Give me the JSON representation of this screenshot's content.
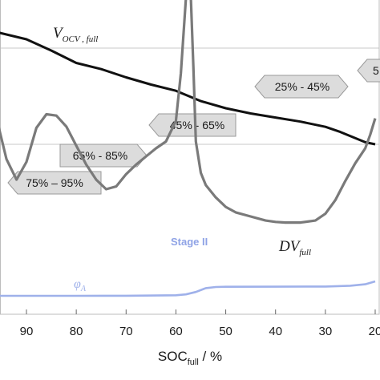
{
  "chart_data": {
    "type": "line",
    "xlabel_main": "SOC",
    "xlabel_sub": "full",
    "xlabel_unit": " / %",
    "x_reversed": true,
    "xlim": [
      96,
      20
    ],
    "x_ticks": [
      90,
      80,
      70,
      60,
      50,
      40,
      30,
      20
    ],
    "x_tick_labels": [
      "90",
      "80",
      "70",
      "60",
      "50",
      "40",
      "30",
      "20"
    ],
    "colors": {
      "vocv": "#111111",
      "dv": "#7a7a7a",
      "phi": "#9fb1ea",
      "stage": "#8fa3e6",
      "arrow_fill": "#dcdcdc",
      "arrow_stroke": "#9a9a9a"
    },
    "series": [
      {
        "key": "vocv",
        "x": [
          96,
          90,
          85,
          80,
          75,
          70,
          65,
          60,
          55,
          50,
          45,
          40,
          35,
          30,
          27,
          24,
          22,
          20
        ],
        "y": [
          3.52,
          3.485,
          3.43,
          3.37,
          3.34,
          3.3,
          3.265,
          3.235,
          3.185,
          3.15,
          3.125,
          3.105,
          3.085,
          3.06,
          3.035,
          3.005,
          2.985,
          2.975
        ]
      },
      {
        "key": "dv",
        "x": [
          96,
          94,
          92,
          90,
          88,
          86,
          84,
          82,
          80,
          78,
          76,
          74,
          72,
          70,
          68,
          66,
          64,
          62,
          60,
          59,
          58,
          57.5,
          57,
          56.5,
          56,
          55,
          54,
          52,
          50,
          48,
          45,
          42,
          40,
          38,
          35,
          32,
          30,
          28,
          26,
          24,
          22,
          21,
          20
        ],
        "y": [
          0.72,
          0.42,
          0.27,
          0.4,
          0.65,
          0.75,
          0.74,
          0.66,
          0.52,
          0.38,
          0.27,
          0.2,
          0.22,
          0.31,
          0.38,
          0.44,
          0.5,
          0.55,
          0.7,
          1.05,
          1.6,
          1.72,
          1.6,
          1.1,
          0.55,
          0.32,
          0.23,
          0.14,
          0.07,
          0.03,
          0.0,
          -0.03,
          -0.04,
          -0.045,
          -0.045,
          -0.03,
          0.02,
          0.12,
          0.26,
          0.39,
          0.5,
          0.6,
          0.72
        ]
      },
      {
        "key": "phi",
        "x": [
          96,
          80,
          70,
          60,
          58,
          56,
          54,
          52,
          50,
          40,
          30,
          25,
          22,
          20
        ],
        "y": [
          0.0,
          0.0,
          0.001,
          0.006,
          0.015,
          0.04,
          0.08,
          0.092,
          0.094,
          0.095,
          0.097,
          0.105,
          0.12,
          0.15
        ]
      }
    ],
    "annotations": {
      "vocv_label_main": "V",
      "vocv_label_sub": "OCV , full",
      "dv_label_main": "DV",
      "dv_label_sub": "full",
      "phi_label_main": "φ",
      "phi_label_sub": "A",
      "stage_label": "Stage II",
      "range_75_95": "75% – 95%",
      "range_65_85": "65% - 85%",
      "range_45_65": "45% - 65%",
      "range_25_45": "25% - 45%",
      "range_partial": "5"
    }
  }
}
